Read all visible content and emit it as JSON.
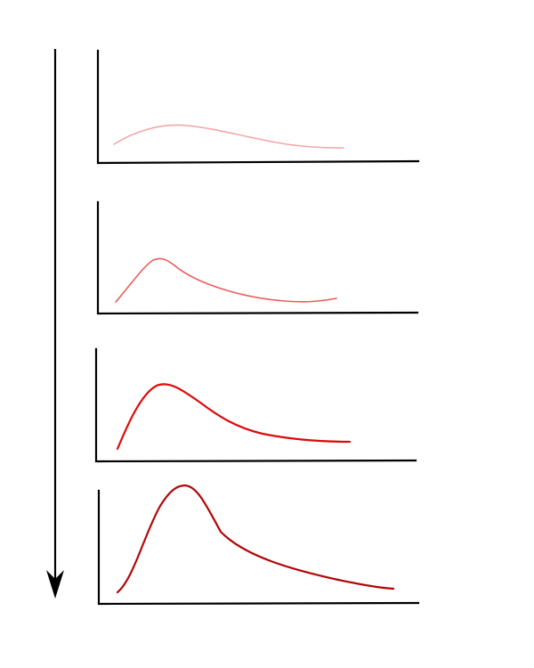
{
  "panels": [
    {
      "id": "panel-1",
      "color": "#f4a6a6"
    },
    {
      "id": "panel-2",
      "color": "#ee5a5a"
    },
    {
      "id": "panel-3",
      "color": "#dd0a0a"
    },
    {
      "id": "panel-4",
      "color": "#b00808"
    }
  ],
  "arrow": {
    "direction": "down",
    "color": "#000000"
  }
}
